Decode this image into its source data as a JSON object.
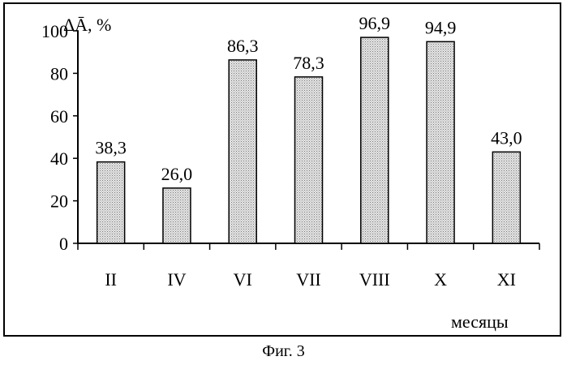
{
  "chart_data": {
    "type": "bar",
    "categories": [
      "II",
      "IV",
      "VI",
      "VII",
      "VIII",
      "X",
      "XI"
    ],
    "values": [
      38.3,
      26.0,
      86.3,
      78.3,
      96.9,
      94.9,
      43.0
    ],
    "data_labels": [
      "38,3",
      "26,0",
      "86,3",
      "78,3",
      "96,9",
      "94,9",
      "43,0"
    ],
    "y_ticks": [
      0,
      20,
      40,
      60,
      80,
      100
    ],
    "ylim": [
      0,
      100
    ],
    "ylabel": "ΔĀ, %",
    "xlabel": "месяцы",
    "bar_fill": "#d6d6d6",
    "grid": false,
    "legend": "none"
  },
  "caption": "Фиг. 3"
}
